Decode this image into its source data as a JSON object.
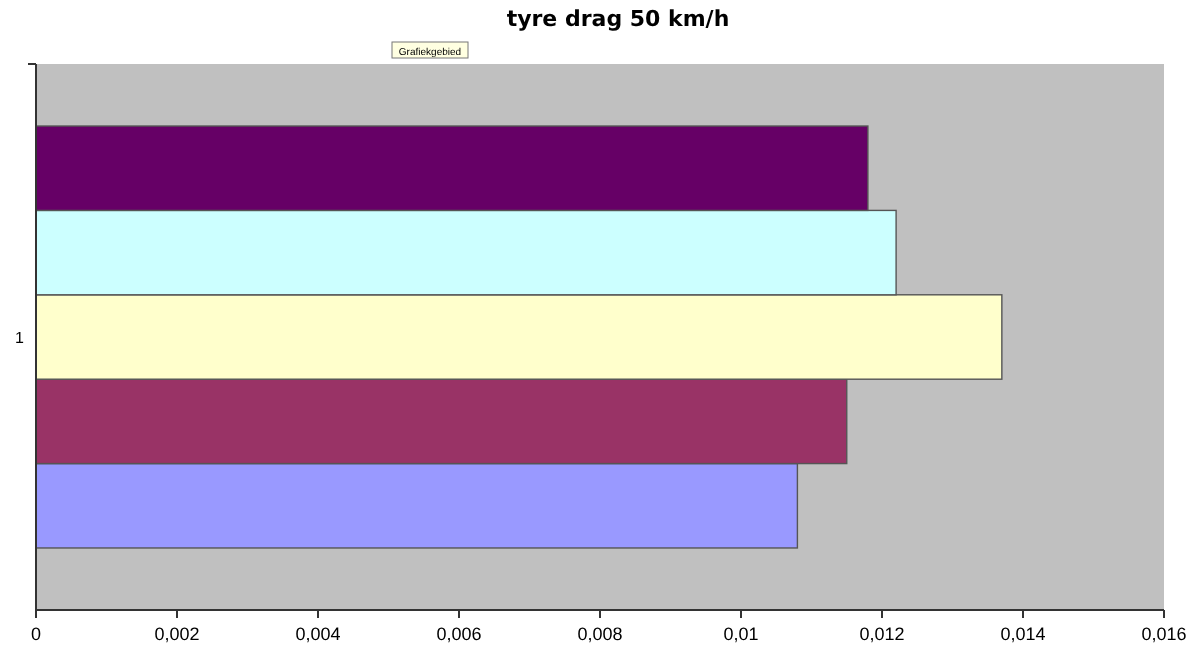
{
  "chart_data": {
    "type": "bar",
    "orientation": "horizontal",
    "title": "tyre drag 50 km/h",
    "annotations": [
      "Grafiekgebied"
    ],
    "categories": [
      "1"
    ],
    "series": [
      {
        "color": "#9999ff",
        "values": [
          0.0108
        ]
      },
      {
        "color": "#993366",
        "values": [
          0.0115
        ]
      },
      {
        "color": "#ffffcc",
        "values": [
          0.0137
        ]
      },
      {
        "color": "#ccffff",
        "values": [
          0.0122
        ]
      },
      {
        "color": "#660066",
        "values": [
          0.0118
        ]
      }
    ],
    "xlim": [
      0,
      0.016
    ],
    "xticks": [
      0,
      {
        "value": 0.002,
        "label": "0,002"
      },
      {
        "value": 0.004,
        "label": "0,004"
      },
      {
        "value": 0.006,
        "label": "0,006"
      },
      {
        "value": 0.008,
        "label": "0,008"
      },
      {
        "value": 0.01,
        "label": "0,01"
      },
      {
        "value": 0.012,
        "label": "0,012"
      },
      {
        "value": 0.014,
        "label": "0,014"
      },
      {
        "value": 0.016,
        "label": "0,016"
      }
    ],
    "grid": false
  }
}
